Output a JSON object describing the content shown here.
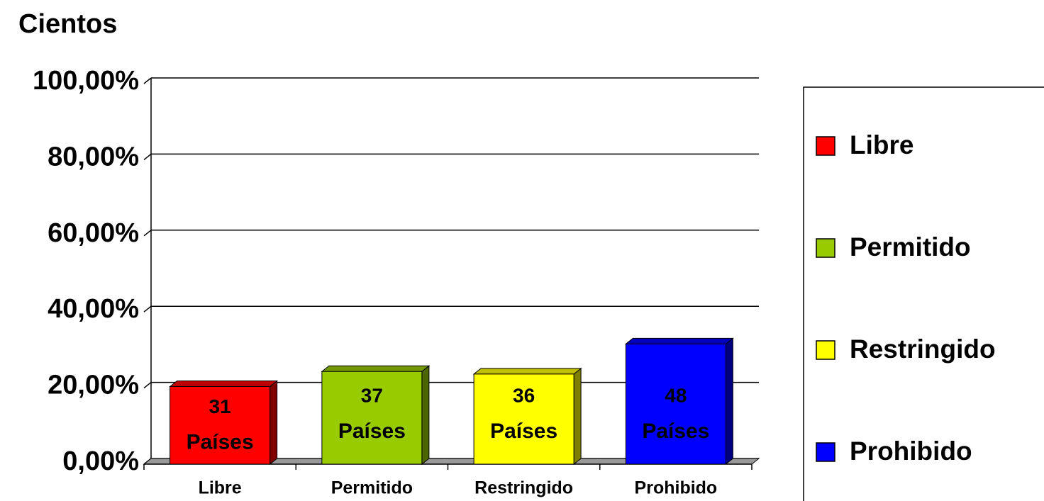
{
  "chart_data": {
    "type": "bar3d",
    "title": "Cientos",
    "categories": [
      "Libre",
      "Permitido",
      "Restringido",
      "Prohibido"
    ],
    "values": [
      20.39,
      24.34,
      23.68,
      31.58
    ],
    "colors": [
      "#ff0000",
      "#99cc00",
      "#ffff00",
      "#0000ff"
    ],
    "counts": [
      31,
      37,
      36,
      48
    ],
    "count_label": "Países",
    "ylim": [
      0,
      100
    ],
    "yticks": [
      {
        "value": 0,
        "label": "0,00%"
      },
      {
        "value": 20,
        "label": "20,00%"
      },
      {
        "value": 40,
        "label": "40,00%"
      },
      {
        "value": 60,
        "label": "60,00%"
      },
      {
        "value": 80,
        "label": "80,00%"
      },
      {
        "value": 100,
        "label": "100,00%"
      }
    ],
    "grid": true,
    "legend": "right"
  }
}
